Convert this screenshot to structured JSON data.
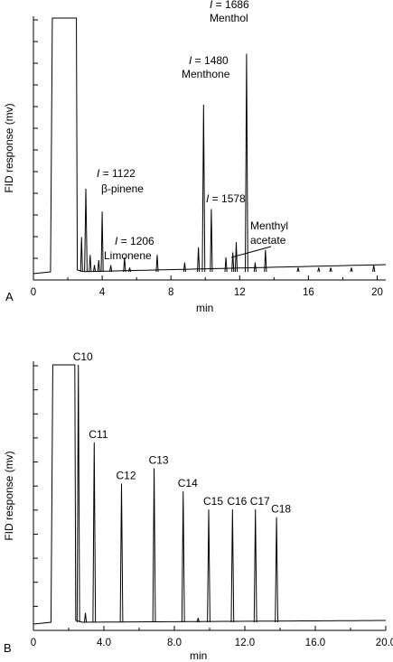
{
  "chart_data": [
    {
      "type": "line",
      "panel_label": "A",
      "xlabel": "min",
      "ylabel": "FID response (mv)",
      "xlim": [
        0,
        20.5
      ],
      "xticks": [
        "0",
        "4",
        "8",
        "12",
        "16",
        "20"
      ],
      "xtick_values": [
        0,
        4,
        8,
        12,
        16,
        20
      ],
      "ylim": [
        0,
        100
      ],
      "grid": false,
      "solvent_peak": {
        "start": 1.1,
        "end": 2.5,
        "height": 100
      },
      "peaks": [
        {
          "x": 2.8,
          "y": 14
        },
        {
          "x": 3.05,
          "y": 33
        },
        {
          "x": 3.3,
          "y": 7
        },
        {
          "x": 3.55,
          "y": 3
        },
        {
          "x": 3.8,
          "y": 5
        },
        {
          "x": 4.0,
          "y": 24,
          "label": "β-pinene",
          "index_text": "I = 1122"
        },
        {
          "x": 4.5,
          "y": 3
        },
        {
          "x": 5.3,
          "y": 6,
          "label": "Limonene",
          "index_text": "I = 1206"
        },
        {
          "x": 5.6,
          "y": 2
        },
        {
          "x": 7.2,
          "y": 7
        },
        {
          "x": 8.8,
          "y": 4
        },
        {
          "x": 9.6,
          "y": 10
        },
        {
          "x": 9.9,
          "y": 66,
          "label": "Menthone",
          "index_text": "I = 1480"
        },
        {
          "x": 10.35,
          "y": 25,
          "index_text": "I = 1578"
        },
        {
          "x": 11.2,
          "y": 6
        },
        {
          "x": 11.6,
          "y": 8
        },
        {
          "x": 11.8,
          "y": 12,
          "label": "Menthyl acetate"
        },
        {
          "x": 12.4,
          "y": 86,
          "label": "Menthol",
          "index_text": "I = 1686"
        },
        {
          "x": 12.9,
          "y": 4
        },
        {
          "x": 13.5,
          "y": 9
        },
        {
          "x": 15.4,
          "y": 2
        },
        {
          "x": 16.6,
          "y": 2
        },
        {
          "x": 17.3,
          "y": 2
        },
        {
          "x": 18.5,
          "y": 2
        },
        {
          "x": 19.8,
          "y": 3
        }
      ],
      "annotations": {
        "bpinene_index": {
          "i": "I",
          "rest": " = 1122"
        },
        "bpinene_name": "β-pinene",
        "limonene_index": {
          "i": "I",
          "rest": " = 1206"
        },
        "limonene_name": "Limonene",
        "menthone_index": {
          "i": "I",
          "rest": " = 1480"
        },
        "menthone_name": "Menthone",
        "peak1578_index": {
          "i": "I",
          "rest": " = 1578"
        },
        "menthyl_line1": "Menthyl",
        "menthyl_line2": "acetate",
        "menthol_index": {
          "i": "I",
          "rest": " = 1686"
        },
        "menthol_name": "Menthol"
      }
    },
    {
      "type": "line",
      "panel_label": "B",
      "xlabel": "min",
      "ylabel": "FID response (mv)",
      "xlim": [
        0,
        20.0
      ],
      "xticks": [
        "0",
        "4.0",
        "8.0",
        "12.0",
        "16.0",
        "20.0"
      ],
      "xtick_values": [
        0,
        4,
        8,
        12,
        16,
        20
      ],
      "ylim": [
        0,
        100
      ],
      "grid": false,
      "solvent_peak": {
        "start": 1.1,
        "end": 2.35,
        "height": 100
      },
      "peaks": [
        {
          "x": 2.55,
          "y": 100,
          "label": "C10"
        },
        {
          "x": 3.45,
          "y": 70,
          "label": "C11"
        },
        {
          "x": 5.0,
          "y": 54,
          "label": "C12"
        },
        {
          "x": 6.85,
          "y": 60,
          "label": "C13"
        },
        {
          "x": 8.5,
          "y": 51,
          "label": "C14"
        },
        {
          "x": 9.95,
          "y": 44,
          "label": "C15"
        },
        {
          "x": 11.3,
          "y": 44,
          "label": "C16"
        },
        {
          "x": 12.6,
          "y": 44,
          "label": "C17"
        },
        {
          "x": 13.8,
          "y": 41,
          "label": "C18"
        },
        {
          "x": 2.95,
          "y": 4
        },
        {
          "x": 9.35,
          "y": 2
        }
      ]
    }
  ]
}
